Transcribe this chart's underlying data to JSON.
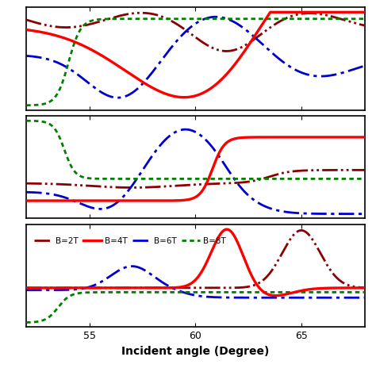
{
  "xlabel": "Incident angle (Degree)",
  "x_range": [
    52,
    68
  ],
  "x_ticks": [
    55,
    60,
    65
  ],
  "colors": {
    "B2T": "#8B0000",
    "B4T": "#FF0000",
    "B6T": "#0000CD",
    "B8T": "#008000"
  },
  "legend_labels": [
    "B=2T",
    "B=4T",
    "B=6T",
    "B=8T"
  ]
}
